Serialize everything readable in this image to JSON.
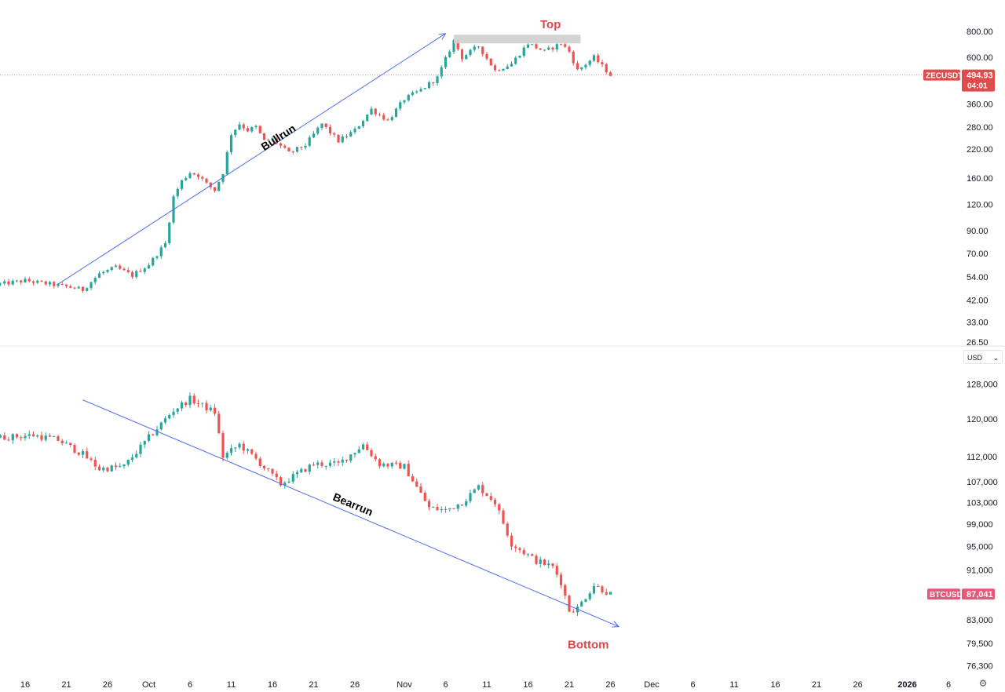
{
  "chart_data": [
    {
      "type": "candlestick",
      "symbol": "ZECUSDT",
      "last_price": "494.93",
      "countdown": "04:01",
      "y_scale": "log",
      "y_ticks": [
        "800.00",
        "600.00",
        "360.00",
        "280.00",
        "220.00",
        "160.00",
        "120.00",
        "90.00",
        "70.00",
        "54.00",
        "42.00",
        "33.00",
        "26.50"
      ],
      "ylim": [
        26.5,
        870
      ],
      "annotations": [
        {
          "text": "Bullrun",
          "kind": "trend-arrow-up"
        },
        {
          "text": "Top",
          "kind": "range-box"
        }
      ],
      "close_path": [
        [
          "2025-09-13",
          50
        ],
        [
          "2025-09-16",
          52
        ],
        [
          "2025-09-19",
          50
        ],
        [
          "2025-09-22",
          48
        ],
        [
          "2025-09-23",
          47
        ],
        [
          "2025-09-25",
          56
        ],
        [
          "2025-09-27",
          60
        ],
        [
          "2025-09-29",
          55
        ],
        [
          "2025-10-01",
          62
        ],
        [
          "2025-10-03",
          78
        ],
        [
          "2025-10-04",
          130
        ],
        [
          "2025-10-05",
          155
        ],
        [
          "2025-10-06",
          170
        ],
        [
          "2025-10-07",
          165
        ],
        [
          "2025-10-08",
          150
        ],
        [
          "2025-10-09",
          140
        ],
        [
          "2025-10-10",
          170
        ],
        [
          "2025-10-11",
          260
        ],
        [
          "2025-10-12",
          290
        ],
        [
          "2025-10-13",
          270
        ],
        [
          "2025-10-14",
          280
        ],
        [
          "2025-10-15",
          240
        ],
        [
          "2025-10-16",
          245
        ],
        [
          "2025-10-18",
          210
        ],
        [
          "2025-10-20",
          230
        ],
        [
          "2025-10-22",
          290
        ],
        [
          "2025-10-24",
          240
        ],
        [
          "2025-10-26",
          270
        ],
        [
          "2025-10-28",
          340
        ],
        [
          "2025-10-30",
          300
        ],
        [
          "2025-11-01",
          380
        ],
        [
          "2025-11-03",
          420
        ],
        [
          "2025-11-05",
          480
        ],
        [
          "2025-11-07",
          720
        ],
        [
          "2025-11-08",
          600
        ],
        [
          "2025-11-10",
          680
        ],
        [
          "2025-11-12",
          520
        ],
        [
          "2025-11-14",
          560
        ],
        [
          "2025-11-16",
          700
        ],
        [
          "2025-11-18",
          640
        ],
        [
          "2025-11-20",
          700
        ],
        [
          "2025-11-21",
          640
        ],
        [
          "2025-11-22",
          520
        ],
        [
          "2025-11-24",
          600
        ],
        [
          "2025-11-26",
          494.93
        ]
      ]
    },
    {
      "type": "candlestick",
      "symbol": "BTCUSD",
      "last_price": "87,041",
      "currency": "USD",
      "y_scale": "log",
      "y_ticks": [
        "128,000",
        "120,000",
        "112,000",
        "107,000",
        "103,000",
        "99,000",
        "95,000",
        "91,000",
        "83,000",
        "79,500",
        "76,300"
      ],
      "ylim": [
        75500,
        132000
      ],
      "annotations": [
        {
          "text": "Bearrun",
          "kind": "trend-arrow-down"
        },
        {
          "text": "Bottom",
          "kind": "label"
        }
      ],
      "close_path": [
        [
          "2025-09-13",
          116000
        ],
        [
          "2025-09-17",
          116500
        ],
        [
          "2025-09-20",
          115500
        ],
        [
          "2025-09-23",
          112500
        ],
        [
          "2025-09-25",
          109500
        ],
        [
          "2025-09-28",
          110000
        ],
        [
          "2025-10-01",
          116000
        ],
        [
          "2025-10-04",
          122000
        ],
        [
          "2025-10-06",
          124500
        ],
        [
          "2025-10-09",
          121500
        ],
        [
          "2025-10-10",
          112000
        ],
        [
          "2025-10-12",
          114500
        ],
        [
          "2025-10-14",
          111500
        ],
        [
          "2025-10-17",
          106500
        ],
        [
          "2025-10-19",
          108500
        ],
        [
          "2025-10-21",
          110500
        ],
        [
          "2025-10-24",
          110500
        ],
        [
          "2025-10-27",
          114500
        ],
        [
          "2025-10-29",
          110500
        ],
        [
          "2025-11-01",
          110000
        ],
        [
          "2025-11-04",
          102000
        ],
        [
          "2025-11-06",
          101500
        ],
        [
          "2025-11-08",
          103000
        ],
        [
          "2025-11-10",
          106000
        ],
        [
          "2025-11-12",
          103000
        ],
        [
          "2025-11-14",
          95500
        ],
        [
          "2025-11-17",
          92500
        ],
        [
          "2025-11-19",
          91500
        ],
        [
          "2025-11-20",
          89000
        ],
        [
          "2025-11-21",
          84500
        ],
        [
          "2025-11-22",
          84800
        ],
        [
          "2025-11-24",
          88500
        ],
        [
          "2025-11-26",
          87041
        ]
      ]
    }
  ],
  "x_ticks": [
    {
      "label": "16",
      "date": "2025-09-16"
    },
    {
      "label": "21",
      "date": "2025-09-21"
    },
    {
      "label": "26",
      "date": "2025-09-26"
    },
    {
      "label": "Oct",
      "date": "2025-10-01"
    },
    {
      "label": "6",
      "date": "2025-10-06"
    },
    {
      "label": "11",
      "date": "2025-10-11"
    },
    {
      "label": "16",
      "date": "2025-10-16"
    },
    {
      "label": "21",
      "date": "2025-10-21"
    },
    {
      "label": "26",
      "date": "2025-10-26"
    },
    {
      "label": "Nov",
      "date": "2025-11-01"
    },
    {
      "label": "6",
      "date": "2025-11-06"
    },
    {
      "label": "11",
      "date": "2025-11-11"
    },
    {
      "label": "16",
      "date": "2025-11-16"
    },
    {
      "label": "21",
      "date": "2025-11-21"
    },
    {
      "label": "26",
      "date": "2025-11-26"
    },
    {
      "label": "Dec",
      "date": "2025-12-01"
    },
    {
      "label": "6",
      "date": "2025-12-06"
    },
    {
      "label": "11",
      "date": "2025-12-11"
    },
    {
      "label": "16",
      "date": "2025-12-16"
    },
    {
      "label": "21",
      "date": "2025-12-21"
    },
    {
      "label": "26",
      "date": "2025-12-26"
    },
    {
      "label": "2026",
      "date": "2026-01-01",
      "bold": true
    },
    {
      "label": "6",
      "date": "2026-01-06"
    }
  ],
  "colors": {
    "up": "#26a69a",
    "down": "#ef5350",
    "trend": "#4c6ef5",
    "top_box": "#cfcfcf",
    "annotation_red": "#e0474c",
    "zec_badge": "#e04b4b",
    "btc_badge": "#e8567a",
    "price_line": "#f28c8c"
  },
  "ui": {
    "currency_select": "USD",
    "settings_icon": "gear-icon"
  }
}
